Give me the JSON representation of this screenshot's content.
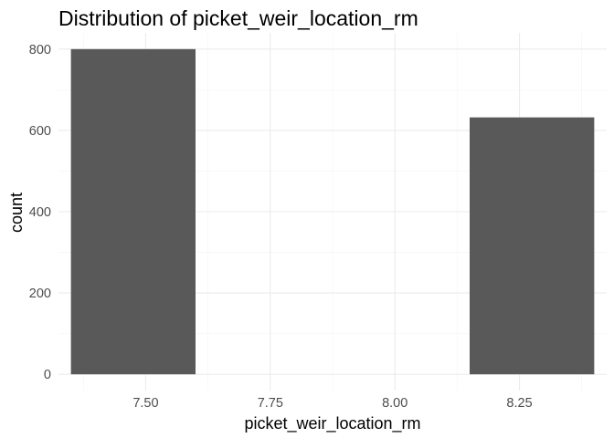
{
  "chart_data": {
    "type": "bar",
    "title": "Distribution of picket_weir_location_rm",
    "xlabel": "picket_weir_location_rm",
    "ylabel": "count",
    "x_ticks": [
      "7.50",
      "7.75",
      "8.00",
      "8.25"
    ],
    "y_ticks": [
      "0",
      "200",
      "400",
      "600",
      "800"
    ],
    "xlim": [
      7.325,
      8.425
    ],
    "ylim": [
      -40,
      840
    ],
    "bars": [
      {
        "x_start": 7.35,
        "x_end": 7.6,
        "count": 800
      },
      {
        "x_start": 8.15,
        "x_end": 8.4,
        "count": 632
      }
    ],
    "bar_color": "#595959",
    "grid": true,
    "legend": "none"
  }
}
